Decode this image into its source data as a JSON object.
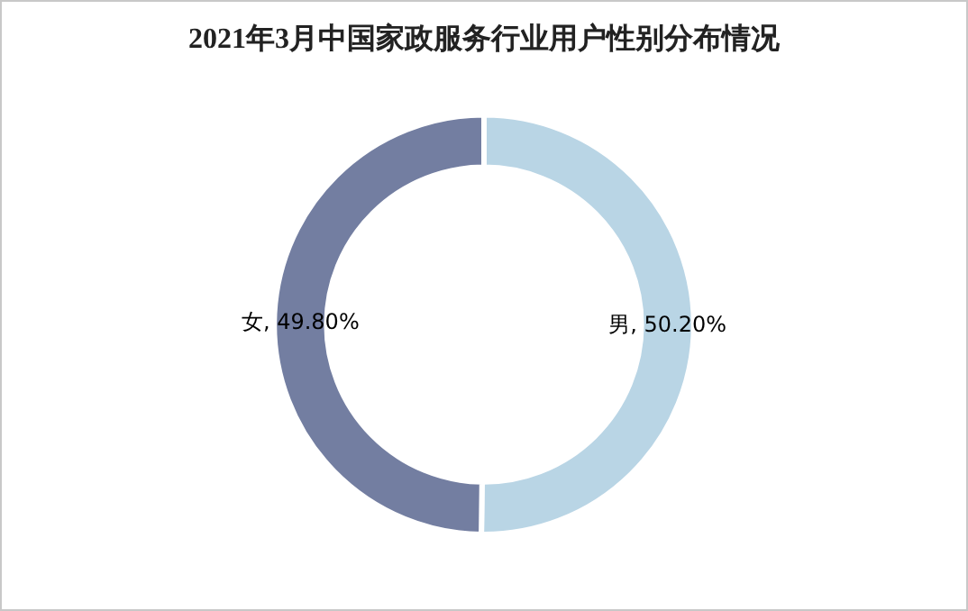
{
  "chart_data": {
    "type": "donut",
    "title": "2021年3月中国家政服务行业用户性别分布情况",
    "categories": [
      "男",
      "女"
    ],
    "values": [
      50.2,
      49.8
    ],
    "colors": [
      "#b9d5e5",
      "#737ea1"
    ],
    "value_labels": [
      "50.20%",
      "49.80%"
    ],
    "legend": false
  }
}
